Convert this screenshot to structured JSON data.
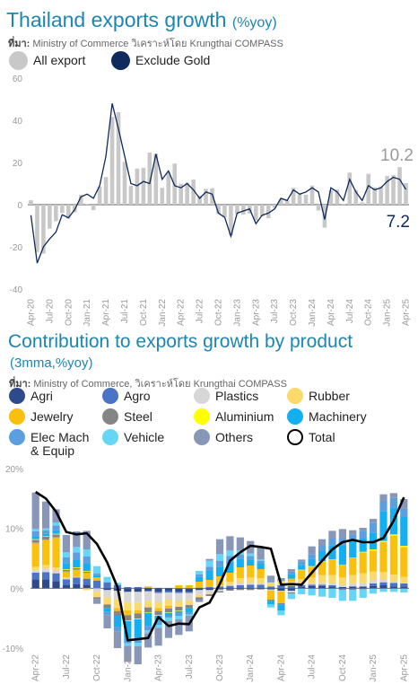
{
  "chart_data": [
    {
      "type": "bar",
      "title": "Thailand exports growth",
      "title_unit": "(%yoy)",
      "source_prefix": "ที่มา:",
      "source_text": " Ministry of Commerce วิเคราะห์โดย Krungthai COMPASS",
      "ylim": [
        -40,
        60
      ],
      "yticks": [
        "60",
        "40",
        "20",
        "0",
        "-20",
        "-40"
      ],
      "ytick_values": [
        60,
        40,
        20,
        0,
        -20,
        -40
      ],
      "xticks": [
        "Apr-20",
        "Jul-20",
        "Oct-20",
        "Jan-21",
        "Apr-21",
        "Jul-21",
        "Oct-21",
        "Jan-22",
        "Apr-22",
        "Jul-22",
        "Oct-22",
        "Jan-23",
        "Apr-23",
        "Jul-23",
        "Oct-23",
        "Jan-24",
        "Apr-24",
        "Jul-24",
        "Oct-24",
        "Jan-25",
        "Apr-25"
      ],
      "x": [
        "Apr-20",
        "May-20",
        "Jun-20",
        "Jul-20",
        "Aug-20",
        "Sep-20",
        "Oct-20",
        "Nov-20",
        "Dec-20",
        "Jan-21",
        "Feb-21",
        "Mar-21",
        "Apr-21",
        "May-21",
        "Jun-21",
        "Jul-21",
        "Aug-21",
        "Sep-21",
        "Oct-21",
        "Nov-21",
        "Dec-21",
        "Jan-22",
        "Feb-22",
        "Mar-22",
        "Apr-22",
        "May-22",
        "Jun-22",
        "Jul-22",
        "Aug-22",
        "Sep-22",
        "Oct-22",
        "Nov-22",
        "Dec-22",
        "Jan-23",
        "Feb-23",
        "Mar-23",
        "Apr-23",
        "May-23",
        "Jun-23",
        "Jul-23",
        "Aug-23",
        "Sep-23",
        "Oct-23",
        "Nov-23",
        "Dec-23",
        "Jan-24",
        "Feb-24",
        "Mar-24",
        "Apr-24",
        "May-24",
        "Jun-24",
        "Jul-24",
        "Aug-24",
        "Sep-24",
        "Oct-24",
        "Nov-24",
        "Dec-24",
        "Jan-25",
        "Feb-25",
        "Mar-25",
        "Apr-25"
      ],
      "series": [
        {
          "name": "All export",
          "color": "#c8c8c8",
          "values": [
            2.1,
            -22.5,
            -23.2,
            -11.4,
            -7.9,
            -3.9,
            -6.7,
            -3.6,
            4.7,
            0.3,
            -2.6,
            8.5,
            13.1,
            41.6,
            43.8,
            20.3,
            8.9,
            17.1,
            17.4,
            24.7,
            24.2,
            8.0,
            15.5,
            19.5,
            9.9,
            10.5,
            11.9,
            4.3,
            7.5,
            7.8,
            -4.4,
            -6.0,
            -14.6,
            -4.5,
            -4.7,
            -4.2,
            -7.6,
            -5.5,
            -6.4,
            -1.5,
            2.6,
            2.1,
            8.0,
            4.9,
            4.7,
            9.0,
            -2.8,
            -10.9,
            6.8,
            7.2,
            0.3,
            15.2,
            7.0,
            1.1,
            14.6,
            8.2,
            8.7,
            13.6,
            14.0,
            17.8,
            10.2
          ]
        },
        {
          "name": "Exclude Gold",
          "color": "#0f2a5c",
          "values": [
            -5.0,
            -27.7,
            -20.0,
            -16.2,
            -13.0,
            -4.8,
            -6.2,
            -2.4,
            3.7,
            5.0,
            3.0,
            9.0,
            23.0,
            48.0,
            36.0,
            23.0,
            10.0,
            9.0,
            11.0,
            10.0,
            24.0,
            12.0,
            16.0,
            9.0,
            8.0,
            10.0,
            7.0,
            3.0,
            6.0,
            5.0,
            -4.0,
            -6.0,
            -15.0,
            -4.0,
            -3.0,
            -2.0,
            -9.0,
            -5.0,
            -4.0,
            -2.0,
            3.0,
            2.0,
            7.0,
            5.0,
            6.0,
            8.0,
            6.0,
            -7.0,
            8.0,
            6.0,
            2.0,
            12.0,
            6.0,
            2.0,
            9.0,
            7.0,
            8.0,
            11.0,
            13.0,
            12.0,
            7.2
          ]
        }
      ],
      "annotations": {
        "all_export_last": "10.2",
        "exclude_gold_last": "7.2"
      },
      "legend_placement": "top-left",
      "grid": false
    },
    {
      "type": "bar",
      "subtype": "stacked-bar-with-line",
      "title": "Contribution to exports growth by product",
      "subtitle": "(3mma,%yoy)",
      "source_prefix": "ที่มา:",
      "source_text": " Ministry of Commerce, วิเคราะห์โดย Krungthai COMPASS",
      "ylim": [
        -10,
        20
      ],
      "yticks": [
        "20%",
        "10%",
        "0%",
        "-10%"
      ],
      "ytick_values": [
        20,
        10,
        0,
        -10
      ],
      "xticks": [
        "Apr-22",
        "Jul-22",
        "Oct-22",
        "Jan-23",
        "Apr-23",
        "Jul-23",
        "Oct-23",
        "Jan-24",
        "Apr-24",
        "Jul-24",
        "Oct-24",
        "Jan-25",
        "Apr-25"
      ],
      "x": [
        "Apr-22",
        "May-22",
        "Jun-22",
        "Jul-22",
        "Aug-22",
        "Sep-22",
        "Oct-22",
        "Nov-22",
        "Dec-22",
        "Jan-23",
        "Feb-23",
        "Mar-23",
        "Apr-23",
        "May-23",
        "Jun-23",
        "Jul-23",
        "Aug-23",
        "Sep-23",
        "Oct-23",
        "Nov-23",
        "Dec-23",
        "Jan-24",
        "Feb-24",
        "Mar-24",
        "Apr-24",
        "May-24",
        "Jun-24",
        "Jul-24",
        "Aug-24",
        "Sep-24",
        "Oct-24",
        "Nov-24",
        "Dec-24",
        "Jan-25",
        "Feb-25",
        "Mar-25",
        "Apr-25"
      ],
      "series": [
        {
          "name": "Agri",
          "color": "#2e4a8c",
          "values": [
            1.5,
            1.5,
            1.2,
            0.5,
            0.7,
            0.6,
            0.1,
            -0.3,
            -0.4,
            -0.6,
            -0.6,
            -0.5,
            -0.6,
            -0.4,
            -0.6,
            -0.6,
            -0.3,
            -0.3,
            -0.2,
            -0.2,
            -0.1,
            -0.1,
            -0.1,
            -0.2,
            -0.4,
            -0.4,
            0.3,
            0.4,
            0.4,
            0.3,
            0.2,
            0.3,
            0.3,
            0.4,
            0.5,
            0.3,
            0.3
          ]
        },
        {
          "name": "Agro",
          "color": "#4a74c6",
          "values": [
            1.1,
            1.2,
            1.3,
            1.0,
            1.1,
            1.0,
            1.2,
            1.0,
            0.5,
            0.2,
            0.2,
            0.1,
            -0.2,
            -0.3,
            -0.2,
            -0.2,
            0.1,
            0.2,
            0.3,
            0.4,
            0.5,
            0.6,
            0.6,
            0.3,
            0.5,
            0.4,
            0.2,
            0.2,
            0.2,
            0.2,
            -0.2,
            -0.2,
            -0.1,
            0.4,
            0.5,
            0.6,
            0.5
          ]
        },
        {
          "name": "Plastics",
          "color": "#d7d7d7",
          "values": [
            0.4,
            0.5,
            0.4,
            0.2,
            0.1,
            0.0,
            -0.6,
            -1.2,
            -1.4,
            -1.7,
            -1.8,
            -1.6,
            -1.5,
            -1.2,
            -1.3,
            -1.2,
            -0.8,
            -0.5,
            -0.3,
            0.1,
            0.4,
            0.3,
            0.2,
            -0.2,
            -0.1,
            -0.3,
            0.2,
            0.2,
            0.4,
            0.3,
            0.3,
            0.5,
            0.6,
            0.6,
            0.4,
            0.2,
            0.1
          ]
        },
        {
          "name": "Rubber",
          "color": "#fbd96a",
          "values": [
            0.6,
            0.7,
            0.6,
            0.1,
            0.0,
            -0.3,
            -0.9,
            -1.2,
            -1.5,
            -1.4,
            -1.3,
            -1.1,
            -1.0,
            -1.0,
            -1.0,
            -0.8,
            -0.4,
            -0.2,
            0.2,
            0.6,
            0.8,
            0.9,
            0.9,
            0.7,
            0.7,
            0.7,
            0.8,
            1.0,
            1.2,
            1.4,
            1.3,
            1.4,
            1.6,
            1.4,
            1.3,
            1.2,
            1.0
          ]
        },
        {
          "name": "Jewelry",
          "color": "#f9c10d",
          "values": [
            4.0,
            4.2,
            5.0,
            1.0,
            1.2,
            1.0,
            0.5,
            0.0,
            -0.5,
            -0.8,
            -0.5,
            0.2,
            -0.5,
            -0.5,
            0.5,
            0.5,
            1.0,
            1.2,
            1.5,
            1.5,
            1.8,
            2.0,
            1.5,
            -1.5,
            -2.0,
            0.5,
            1.5,
            1.8,
            2.2,
            2.5,
            2.0,
            2.8,
            3.5,
            3.5,
            5.0,
            6.5,
            5.0
          ]
        },
        {
          "name": "Steel",
          "color": "#858585",
          "values": [
            0.5,
            0.5,
            0.5,
            0.3,
            0.3,
            0.2,
            -0.3,
            -0.6,
            -0.8,
            -0.9,
            -0.9,
            -0.8,
            -0.7,
            -0.6,
            -0.6,
            -0.5,
            -0.4,
            -0.3,
            -0.2,
            -0.2,
            -0.2,
            -0.2,
            -0.1,
            -0.2,
            -0.2,
            -0.2,
            -0.1,
            -0.1,
            -0.1,
            -0.1,
            -0.1,
            -0.1,
            -0.1,
            -0.1,
            -0.1,
            -0.1,
            -0.1
          ]
        },
        {
          "name": "Aluminium",
          "color": "#ffff00",
          "values": [
            0.1,
            0.1,
            0.1,
            0.1,
            0.1,
            0.1,
            0.0,
            0.0,
            0.0,
            -0.1,
            -0.1,
            -0.1,
            -0.1,
            -0.1,
            -0.1,
            0.0,
            0.0,
            0.0,
            0.0,
            0.0,
            0.0,
            0.0,
            0.0,
            0.0,
            0.0,
            0.0,
            0.1,
            0.1,
            0.1,
            0.1,
            0.1,
            0.1,
            0.1,
            0.2,
            0.2,
            0.2,
            0.2
          ]
        },
        {
          "name": "Machinery",
          "color": "#13aff0",
          "values": [
            0.5,
            0.4,
            0.6,
            1.0,
            1.2,
            1.2,
            0.4,
            -0.6,
            -1.8,
            -2.8,
            -3.0,
            -2.2,
            -1.0,
            -0.5,
            -0.2,
            -0.8,
            0.8,
            1.5,
            1.6,
            1.9,
            1.4,
            1.0,
            0.9,
            -0.6,
            -1.0,
            0.8,
            0.8,
            1.2,
            1.7,
            2.4,
            3.2,
            2.8,
            2.2,
            2.8,
            5.0,
            4.5,
            4.8
          ]
        },
        {
          "name": "Elec Mach\n& Equip",
          "color": "#5b9fdf",
          "values": [
            0.8,
            0.6,
            0.8,
            1.0,
            1.3,
            1.2,
            0.3,
            -0.6,
            -0.8,
            -0.9,
            -0.9,
            -0.7,
            -0.5,
            -0.3,
            -0.6,
            -0.3,
            0.4,
            0.7,
            1.0,
            0.9,
            0.7,
            0.6,
            0.5,
            0.3,
            0.2,
            0.4,
            0.6,
            0.8,
            0.9,
            1.1,
            1.2,
            1.1,
            1.3,
            1.6,
            1.7,
            1.6,
            1.4
          ]
        },
        {
          "name": "Vehicle",
          "color": "#66d6f7",
          "values": [
            0.4,
            0.3,
            0.5,
            0.8,
            0.9,
            1.2,
            1.2,
            0.9,
            0.4,
            -0.4,
            -0.6,
            -0.5,
            -0.5,
            -0.6,
            -0.6,
            -0.2,
            0.6,
            1.0,
            1.1,
            0.9,
            0.7,
            0.4,
            0.2,
            -0.5,
            -0.8,
            -0.9,
            -0.9,
            -1.1,
            -1.3,
            -1.5,
            -1.8,
            -1.8,
            -1.4,
            -0.8,
            -0.5,
            -0.5,
            -0.6
          ]
        },
        {
          "name": "Others",
          "color": "#8896b8",
          "values": [
            6.1,
            4.5,
            2.2,
            2.9,
            2.6,
            3.1,
            -0.8,
            -2.2,
            -2.8,
            -2.7,
            -3.0,
            -2.4,
            -3.0,
            -2.8,
            -2.6,
            -2.6,
            -0.4,
            0.3,
            2.5,
            2.4,
            2.2,
            2.1,
            2.0,
            0.8,
            0.3,
            0.4,
            0.3,
            1.3,
            1.1,
            1.3,
            1.6,
            0.7,
            0.5,
            0.7,
            1.1,
            0.8,
            1.6
          ]
        },
        {
          "name": "Total",
          "color": "#000000",
          "type": "line",
          "values": [
            16.1,
            15.0,
            12.8,
            9.4,
            9.0,
            9.2,
            7.4,
            4.3,
            0.2,
            -8.7,
            -8.5,
            -8.3,
            -4.8,
            -6.3,
            -5.9,
            -6.0,
            -3.2,
            -2.4,
            0.7,
            4.6,
            6.0,
            7.1,
            6.9,
            6.6,
            0.6,
            0.7,
            0.6,
            2.6,
            4.6,
            6.5,
            7.7,
            8.1,
            7.7,
            7.7,
            8.4,
            11.3,
            15.2
          ]
        }
      ],
      "legend_placement": "top",
      "grid": false
    }
  ]
}
